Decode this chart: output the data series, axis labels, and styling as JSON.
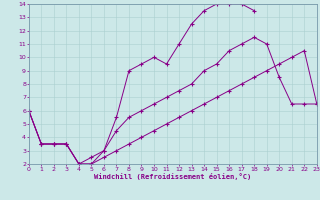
{
  "xlabel": "Windchill (Refroidissement éolien,°C)",
  "bg_color": "#cce8e8",
  "line_color": "#880088",
  "grid_color": "#aad0d0",
  "xmin": 0,
  "xmax": 23,
  "ymin": 2,
  "ymax": 14,
  "xticks": [
    0,
    1,
    2,
    3,
    4,
    5,
    6,
    7,
    8,
    9,
    10,
    11,
    12,
    13,
    14,
    15,
    16,
    17,
    18,
    19,
    20,
    21,
    22,
    23
  ],
  "yticks": [
    2,
    3,
    4,
    5,
    6,
    7,
    8,
    9,
    10,
    11,
    12,
    13,
    14
  ],
  "line1_x": [
    0,
    1,
    2,
    3,
    4,
    5,
    6,
    7,
    8,
    9,
    10,
    11,
    12,
    13,
    14,
    15,
    16,
    17,
    18
  ],
  "line1_y": [
    6,
    3.5,
    3.5,
    3.5,
    2,
    2,
    3,
    5.5,
    9,
    9.5,
    10,
    9.5,
    11,
    12.5,
    13.5,
    14,
    14,
    14,
    13.5
  ],
  "line2_x": [
    0,
    1,
    2,
    3,
    4,
    5,
    6,
    7,
    8,
    9,
    10,
    11,
    12,
    13,
    14,
    15,
    16,
    17,
    18,
    19,
    20,
    21,
    22,
    23
  ],
  "line2_y": [
    6,
    3.5,
    3.5,
    3.5,
    2,
    2.5,
    3,
    4.5,
    5.5,
    6,
    6.5,
    7,
    7.5,
    8,
    9,
    9.5,
    10.5,
    11,
    11.5,
    11,
    8.5,
    6.5,
    6.5,
    6.5
  ],
  "line3_x": [
    0,
    1,
    2,
    3,
    4,
    5,
    6,
    7,
    8,
    9,
    10,
    11,
    12,
    13,
    14,
    15,
    16,
    17,
    18,
    19,
    20,
    21,
    22,
    23
  ],
  "line3_y": [
    6,
    3.5,
    3.5,
    3.5,
    2,
    2,
    2.5,
    3,
    3.5,
    4,
    4.5,
    5,
    5.5,
    6,
    6.5,
    7,
    7.5,
    8,
    8.5,
    9,
    9.5,
    10,
    10.5,
    6.5
  ]
}
